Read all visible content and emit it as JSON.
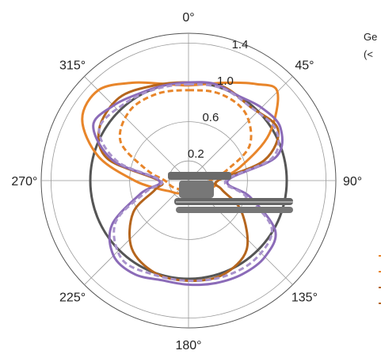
{
  "chart_data": {
    "type": "polar",
    "radial_ticks": [
      "0.2",
      "0.6",
      "1.0",
      "1.4"
    ],
    "r_max": 1.5,
    "angle_labels": [
      {
        "deg": 0,
        "text": "0°"
      },
      {
        "deg": 45,
        "text": "45°"
      },
      {
        "deg": 90,
        "text": "90°"
      },
      {
        "deg": 135,
        "text": "135°"
      },
      {
        "deg": 180,
        "text": "180°"
      },
      {
        "deg": 225,
        "text": "225°"
      },
      {
        "deg": 270,
        "text": "270°"
      },
      {
        "deg": 315,
        "text": "315°"
      }
    ],
    "reference_circle_r": 1.0,
    "side_text": [
      "Ge",
      "(< "
    ],
    "series": [
      {
        "color": "#E8852A",
        "dash": false,
        "points": [
          [
            0,
            0.97
          ],
          [
            20,
            1.06
          ],
          [
            35,
            1.2
          ],
          [
            45,
            1.28
          ],
          [
            60,
            0.95
          ],
          [
            75,
            0.55
          ],
          [
            90,
            0.3
          ],
          [
            100,
            0.28
          ],
          [
            115,
            0.22
          ],
          [
            130,
            0.18
          ],
          [
            150,
            0.15
          ],
          [
            165,
            0.13
          ],
          [
            180,
            0.12
          ],
          [
            195,
            0.13
          ],
          [
            210,
            0.15
          ],
          [
            225,
            0.18
          ],
          [
            240,
            0.22
          ],
          [
            255,
            0.32
          ],
          [
            270,
            0.55
          ],
          [
            285,
            0.95
          ],
          [
            300,
            1.25
          ],
          [
            315,
            1.3
          ],
          [
            330,
            1.15
          ],
          [
            345,
            1.02
          ],
          [
            360,
            0.97
          ]
        ]
      },
      {
        "color": "#E8852A",
        "dash": true,
        "points": [
          [
            0,
            0.92
          ],
          [
            20,
            0.94
          ],
          [
            40,
            0.9
          ],
          [
            60,
            0.72
          ],
          [
            75,
            0.4
          ],
          [
            90,
            0.22
          ],
          [
            110,
            0.18
          ],
          [
            140,
            0.12
          ],
          [
            180,
            0.1
          ],
          [
            220,
            0.12
          ],
          [
            250,
            0.18
          ],
          [
            270,
            0.24
          ],
          [
            285,
            0.45
          ],
          [
            300,
            0.8
          ],
          [
            320,
            0.93
          ],
          [
            340,
            0.94
          ],
          [
            360,
            0.92
          ]
        ]
      },
      {
        "color": "#B5651D",
        "dash": false,
        "points": [
          [
            0,
            1.0
          ],
          [
            20,
            1.02
          ],
          [
            40,
            0.98
          ],
          [
            60,
            1.05
          ],
          [
            75,
            0.8
          ],
          [
            90,
            0.3
          ],
          [
            105,
            0.35
          ],
          [
            120,
            0.62
          ],
          [
            140,
            0.92
          ],
          [
            160,
            1.02
          ],
          [
            180,
            1.02
          ],
          [
            200,
            1.0
          ],
          [
            220,
            0.9
          ],
          [
            240,
            0.65
          ],
          [
            255,
            0.35
          ],
          [
            270,
            0.3
          ],
          [
            285,
            0.85
          ],
          [
            300,
            1.05
          ],
          [
            320,
            1.1
          ],
          [
            340,
            1.03
          ],
          [
            360,
            1.0
          ]
        ]
      },
      {
        "color": "#8B6BB8",
        "dash": false,
        "points": [
          [
            0,
            1.0
          ],
          [
            15,
            1.02
          ],
          [
            30,
            1.0
          ],
          [
            45,
            1.05
          ],
          [
            60,
            1.08
          ],
          [
            75,
            0.92
          ],
          [
            90,
            0.4
          ],
          [
            105,
            0.65
          ],
          [
            120,
            1.02
          ],
          [
            135,
            1.1
          ],
          [
            150,
            1.1
          ],
          [
            165,
            1.08
          ],
          [
            180,
            1.06
          ],
          [
            195,
            1.05
          ],
          [
            210,
            1.1
          ],
          [
            225,
            1.08
          ],
          [
            240,
            0.9
          ],
          [
            255,
            0.5
          ],
          [
            270,
            0.3
          ],
          [
            285,
            0.8
          ],
          [
            300,
            1.12
          ],
          [
            315,
            1.08
          ],
          [
            330,
            1.02
          ],
          [
            345,
            1.0
          ],
          [
            360,
            1.0
          ]
        ]
      },
      {
        "color": "#A993CC",
        "dash": true,
        "points": [
          [
            0,
            0.98
          ],
          [
            20,
            1.0
          ],
          [
            40,
            0.98
          ],
          [
            60,
            1.03
          ],
          [
            75,
            0.88
          ],
          [
            90,
            0.38
          ],
          [
            105,
            0.6
          ],
          [
            120,
            0.98
          ],
          [
            140,
            1.05
          ],
          [
            160,
            1.04
          ],
          [
            180,
            1.02
          ],
          [
            200,
            1.02
          ],
          [
            220,
            1.05
          ],
          [
            240,
            0.86
          ],
          [
            255,
            0.45
          ],
          [
            270,
            0.28
          ],
          [
            285,
            0.75
          ],
          [
            300,
            1.05
          ],
          [
            320,
            1.02
          ],
          [
            340,
            0.99
          ],
          [
            360,
            0.98
          ]
        ]
      }
    ]
  }
}
